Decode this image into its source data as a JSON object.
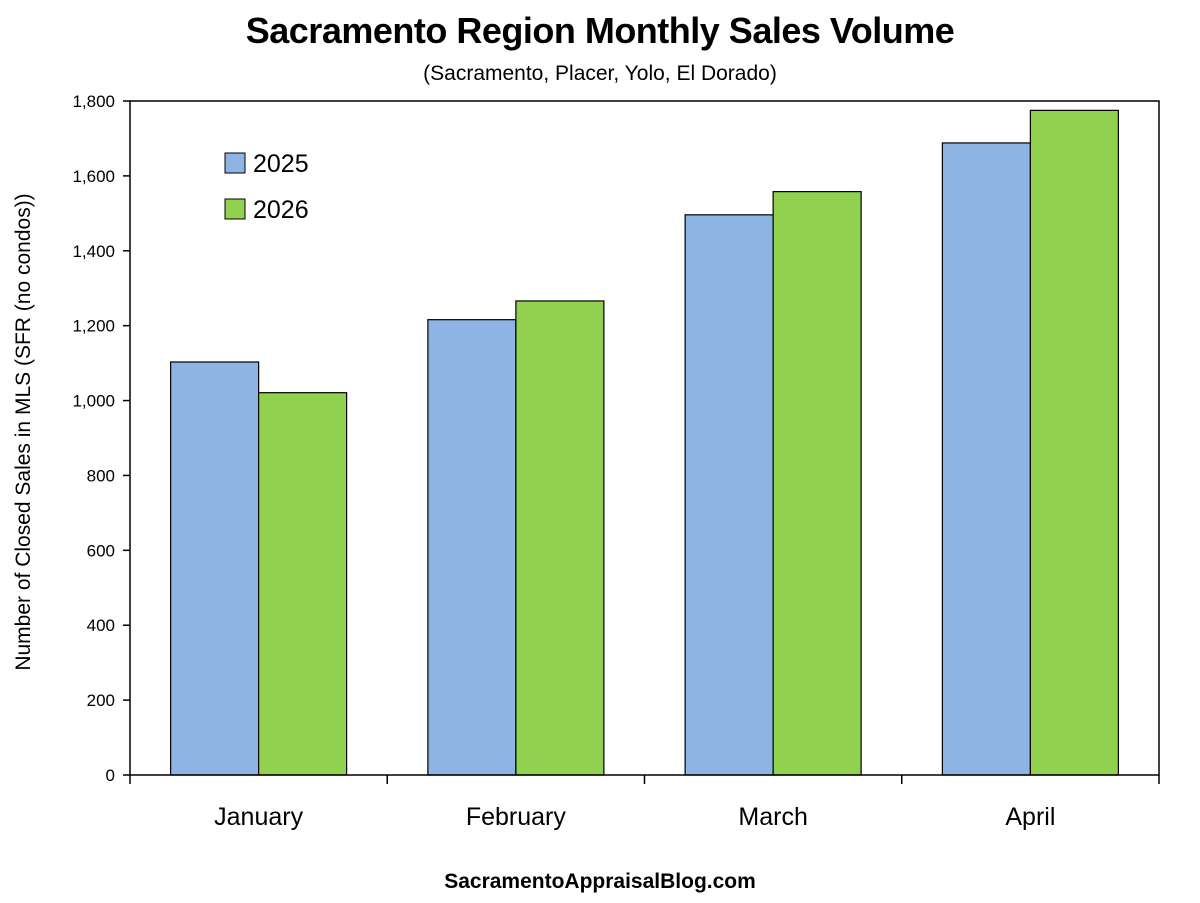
{
  "chart_data": {
    "type": "bar",
    "title": "Sacramento Region Monthly Sales Volume",
    "subtitle": "(Sacramento, Placer, Yolo, El Dorado)",
    "ylabel": "Number of Closed Sales in MLS (SFR (no condos))",
    "xlabel": "",
    "categories": [
      "January",
      "February",
      "March",
      "April"
    ],
    "series": [
      {
        "name": "2025",
        "color": "#8EB4E3",
        "values": [
          1103,
          1216,
          1496,
          1688
        ]
      },
      {
        "name": "2026",
        "color": "#92D050",
        "values": [
          1021,
          1266,
          1558,
          1775
        ]
      }
    ],
    "ylim": [
      0,
      1800
    ],
    "ytick_labels": [
      "0",
      "200",
      "400",
      "600",
      "800",
      "1,000",
      "1,200",
      "1,400",
      "1,600",
      "1,800"
    ],
    "grid": false,
    "legend_position": "top-left"
  },
  "footer": "SacramentoAppraisalBlog.com"
}
